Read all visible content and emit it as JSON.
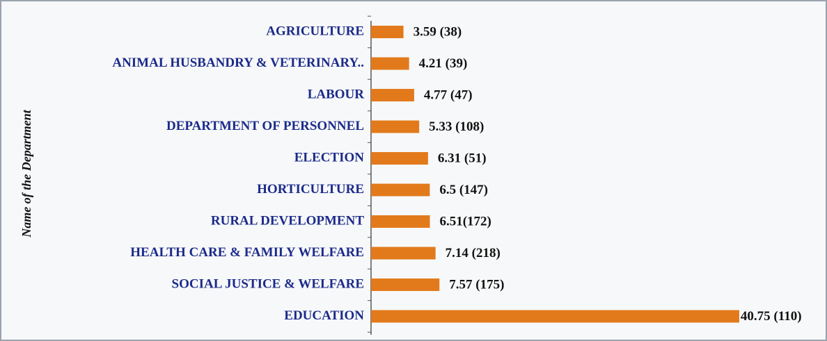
{
  "chart_data": {
    "type": "hbar",
    "y_label": "Name of the Department",
    "categories": [
      "AGRICULTURE",
      "ANIMAL HUSBANDRY & VETERINARY..",
      "LABOUR",
      "DEPARTMENT OF PERSONNEL",
      "ELECTION",
      "HORTICULTURE",
      "RURAL DEVELOPMENT",
      "HEALTH CARE & FAMILY WELFARE",
      "SOCIAL JUSTICE & WELFARE",
      "EDUCATION"
    ],
    "values": [
      3.59,
      4.21,
      4.77,
      5.33,
      6.31,
      6.5,
      6.51,
      7.14,
      7.57,
      40.75
    ],
    "value_labels": [
      "3.59 (38)",
      "4.21 (39)",
      "4.77 (47)",
      "5.33 (108)",
      "6.31 (51)",
      "6.5 (147)",
      "6.51(172)",
      "7.14 (218)",
      "7.57 (175)",
      "40.75 (110)"
    ],
    "color": "#e27a1c"
  }
}
